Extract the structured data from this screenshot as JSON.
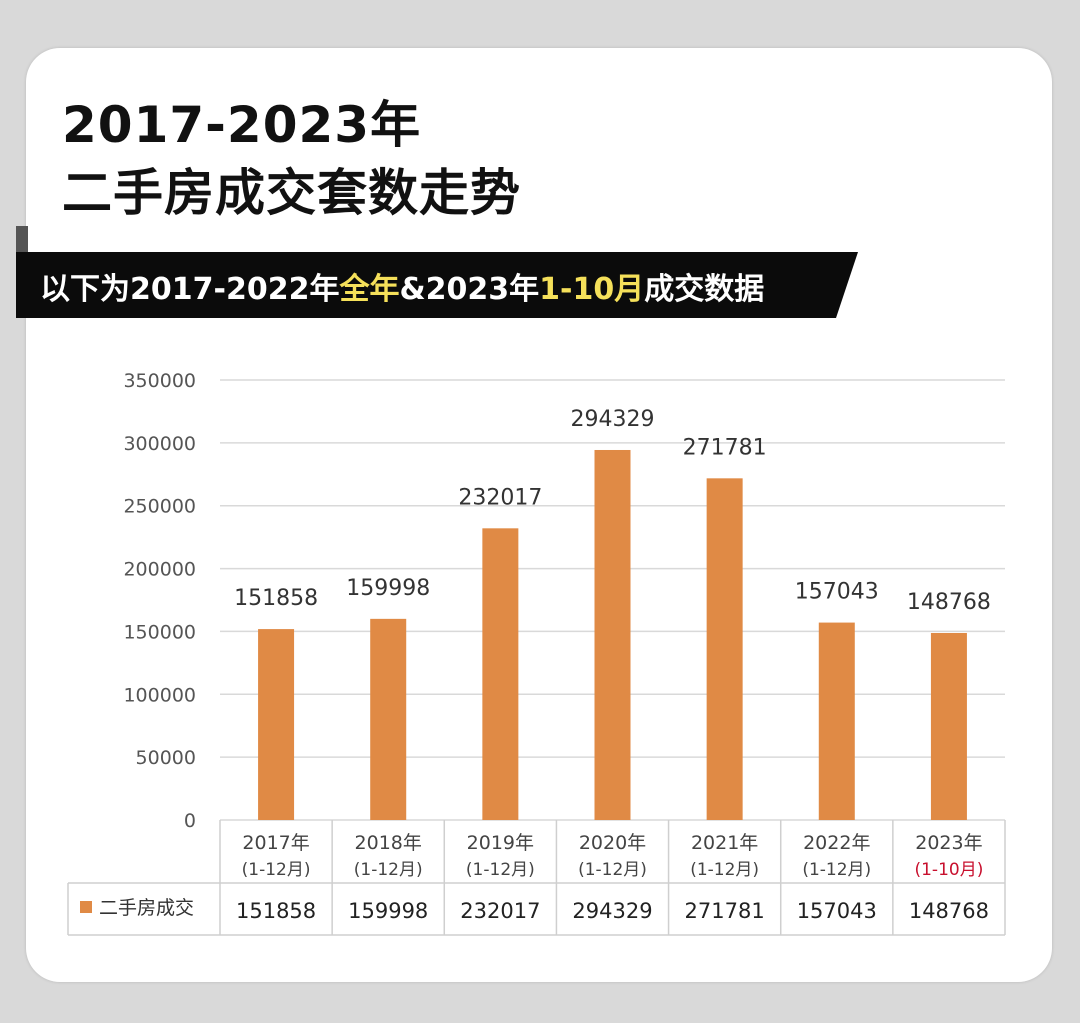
{
  "title": {
    "line1": "2017-2023年",
    "line2": "二手房成交套数走势"
  },
  "banner": {
    "part1": "以下为2017-2022年",
    "highlight1": "全年",
    "part2": "&2023年",
    "highlight2": "1-10月",
    "part3": "成交数据"
  },
  "colors": {
    "bar": "#e08a45",
    "banner_bg": "#0b0b0b",
    "highlight": "#f5e05a",
    "red_note": "#c8102e"
  },
  "chart_data": {
    "type": "bar",
    "categories": [
      "2017年",
      "2018年",
      "2019年",
      "2020年",
      "2021年",
      "2022年",
      "2023年"
    ],
    "category_periods": [
      "(1-12月)",
      "(1-12月)",
      "(1-12月)",
      "(1-12月)",
      "(1-12月)",
      "(1-12月)",
      "(1-10月)"
    ],
    "series": [
      {
        "name": "二手房成交",
        "values": [
          151858,
          159998,
          232017,
          294329,
          271781,
          157043,
          148768
        ]
      }
    ],
    "ylim": [
      0,
      350000
    ],
    "yticks": [
      "0",
      "50000",
      "100000",
      "150000",
      "200000",
      "250000",
      "300000",
      "350000"
    ],
    "grid": true,
    "data_table": true,
    "xlabel": "",
    "ylabel": ""
  }
}
